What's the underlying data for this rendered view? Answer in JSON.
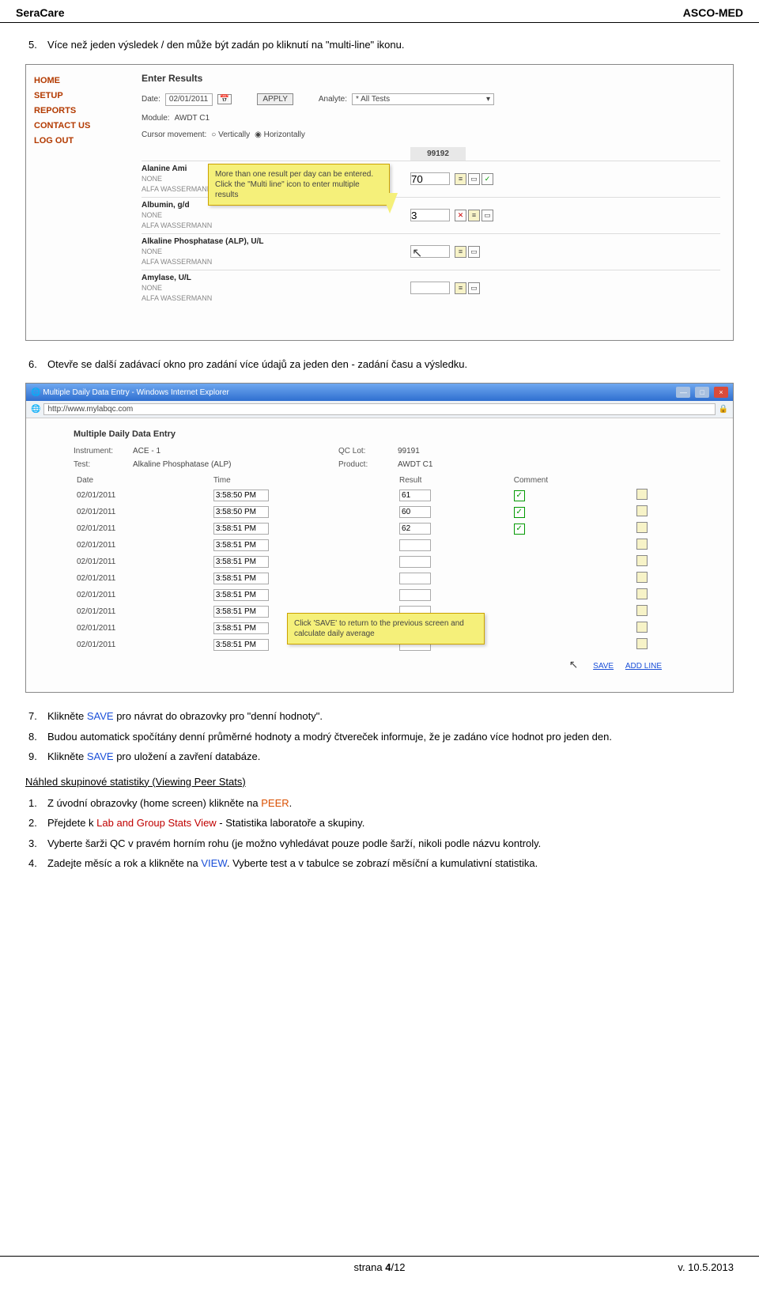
{
  "header": {
    "left": "SeraCare",
    "right": "ASCO-MED"
  },
  "step5": {
    "num": "5.",
    "text": "Více než jeden výsledek / den může být zadán po kliknutí na \"multi-line\" ikonu."
  },
  "shot1": {
    "nav": [
      "HOME",
      "SETUP",
      "REPORTS",
      "CONTACT US",
      "LOG OUT"
    ],
    "title": "Enter Results",
    "date_label": "Date:",
    "date_value": "02/01/2011",
    "apply": "APPLY",
    "analyte_label": "Analyte:",
    "analyte_value": "* All Tests",
    "module_label": "Module:",
    "module_value": "AWDT C1",
    "cursor_label": "Cursor movement:",
    "cursor_v": "Vertically",
    "cursor_h": "Horizontally",
    "sample_header": "99192",
    "analytes": [
      {
        "name": "Alanine Ami",
        "f1": "NONE",
        "f2": "ALFA WASSERMANN",
        "val": "70",
        "ck": true
      },
      {
        "name": "Albumin, g/d",
        "f1": "NONE",
        "f2": "ALFA WASSERMANN",
        "val": "3",
        "x": true
      },
      {
        "name": "Alkaline Phosphatase (ALP), U/L",
        "f1": "NONE",
        "f2": "ALFA WASSERMANN",
        "val": ""
      },
      {
        "name": "Amylase, U/L",
        "f1": "NONE",
        "f2": "ALFA WASSERMANN",
        "val": ""
      }
    ],
    "tooltip": "More than one result per day can be entered. Click the \"Multi line\" icon to enter multiple results"
  },
  "step6": {
    "num": "6.",
    "text": "Otevře se další zadávací okno pro zadání více údajů za jeden den - zadání času a výsledku."
  },
  "shot2": {
    "window_title": "Multiple Daily Data Entry - Windows Internet Explorer",
    "url": "http://www.mylabqc.com",
    "heading": "Multiple Daily Data Entry",
    "instrument_label": "Instrument:",
    "instrument_value": "ACE - 1",
    "test_label": "Test:",
    "test_value": "Alkaline Phosphatase (ALP)",
    "qclot_label": "QC Lot:",
    "qclot_value": "99191",
    "product_label": "Product:",
    "product_value": "AWDT C1",
    "cols": [
      "Date",
      "Time",
      "Result",
      "Comment"
    ],
    "rows": [
      {
        "date": "02/01/2011",
        "time": "3:58:50 PM",
        "result": "61",
        "ck": true
      },
      {
        "date": "02/01/2011",
        "time": "3:58:50 PM",
        "result": "60",
        "ck": true
      },
      {
        "date": "02/01/2011",
        "time": "3:58:51 PM",
        "result": "62",
        "ck": true
      },
      {
        "date": "02/01/2011",
        "time": "3:58:51 PM",
        "result": ""
      },
      {
        "date": "02/01/2011",
        "time": "3:58:51 PM",
        "result": ""
      },
      {
        "date": "02/01/2011",
        "time": "3:58:51 PM",
        "result": ""
      },
      {
        "date": "02/01/2011",
        "time": "3:58:51 PM",
        "result": ""
      },
      {
        "date": "02/01/2011",
        "time": "3:58:51 PM",
        "result": ""
      },
      {
        "date": "02/01/2011",
        "time": "3:58:51 PM",
        "result": ""
      },
      {
        "date": "02/01/2011",
        "time": "3:58:51 PM",
        "result": ""
      }
    ],
    "tooltip": "Click 'SAVE' to return to the previous screen and calculate daily average",
    "save": "SAVE",
    "addline": "ADD LINE"
  },
  "step7": {
    "num": "7.",
    "prefix": "Klikněte ",
    "save": "SAVE",
    "suffix": " pro návrat do obrazovky pro \"denní hodnoty\"."
  },
  "step8": {
    "num": "8.",
    "text": "Budou automatick spočítány denní průměrné hodnoty a modrý čtvereček informuje, že je zadáno více hodnot pro jeden den."
  },
  "step9": {
    "num": "9.",
    "prefix": "Klikněte ",
    "save": "SAVE",
    "suffix": " pro uložení a zavření databáze."
  },
  "peer_heading": "Náhled skupinové statistiky (Viewing Peer Stats)",
  "p1": {
    "num": "1.",
    "prefix": "Z úvodní obrazovky (home screen) klikněte na ",
    "peer": "PEER",
    "suffix": "."
  },
  "p2": {
    "num": "2.",
    "prefix": "Přejdete k ",
    "lab": "Lab and Group Stats View",
    "suffix": " - Statistika laboratoře a skupiny."
  },
  "p3": {
    "num": "3.",
    "text": "Vyberte šarži QC v pravém horním rohu (je možno vyhledávat pouze podle šarží, nikoli podle názvu kontroly."
  },
  "p4": {
    "num": "4.",
    "prefix": "Zadejte měsíc a rok a klikněte na ",
    "view": "VIEW",
    "suffix": ". Vyberte test a v tabulce se zobrazí měsíční a kumulativní statistika."
  },
  "footer": {
    "center_prefix": "strana ",
    "page": "4",
    "total": "/12",
    "right": "v. 10.5.2013"
  }
}
